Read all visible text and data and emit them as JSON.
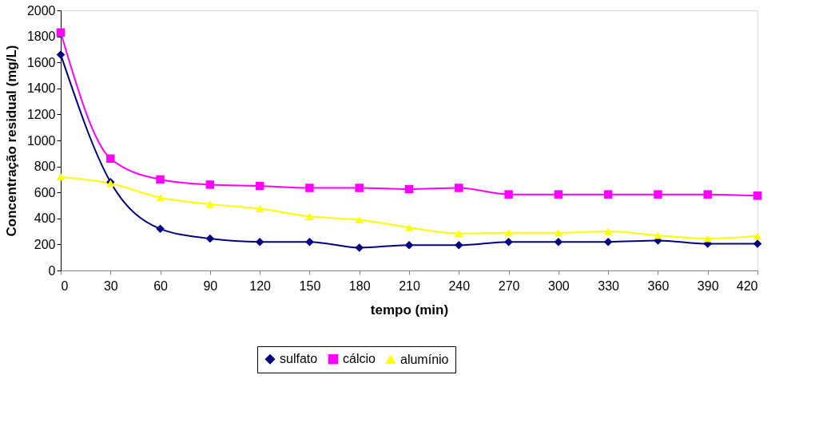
{
  "chart_data": {
    "type": "line",
    "xlabel": "tempo (min)",
    "ylabel": "Concentração residual (mg/L)",
    "x": [
      0,
      30,
      60,
      90,
      120,
      150,
      180,
      210,
      240,
      270,
      300,
      330,
      360,
      390,
      420
    ],
    "xlim": [
      0,
      420
    ],
    "xticks": [
      0,
      30,
      60,
      90,
      120,
      150,
      180,
      210,
      240,
      270,
      300,
      330,
      360,
      390,
      420
    ],
    "ylim": [
      0,
      2000
    ],
    "yticks": [
      0,
      200,
      400,
      600,
      800,
      1000,
      1200,
      1400,
      1600,
      1800,
      2000
    ],
    "grid": false,
    "legend": "bottom",
    "series": [
      {
        "name": "sulfato",
        "color": "#000080",
        "marker": "diamond",
        "values": [
          1660,
          680,
          320,
          245,
          220,
          220,
          175,
          195,
          195,
          220,
          220,
          220,
          230,
          205,
          205
        ]
      },
      {
        "name": "cálcio",
        "color": "#ff00ff",
        "marker": "square",
        "values": [
          1830,
          860,
          700,
          660,
          650,
          635,
          635,
          625,
          635,
          585,
          585,
          585,
          585,
          585,
          575
        ]
      },
      {
        "name": "alumínio",
        "color": "#ffff00",
        "marker": "triangle",
        "values": [
          720,
          670,
          560,
          510,
          475,
          415,
          390,
          330,
          285,
          290,
          290,
          300,
          270,
          245,
          265
        ]
      }
    ]
  }
}
